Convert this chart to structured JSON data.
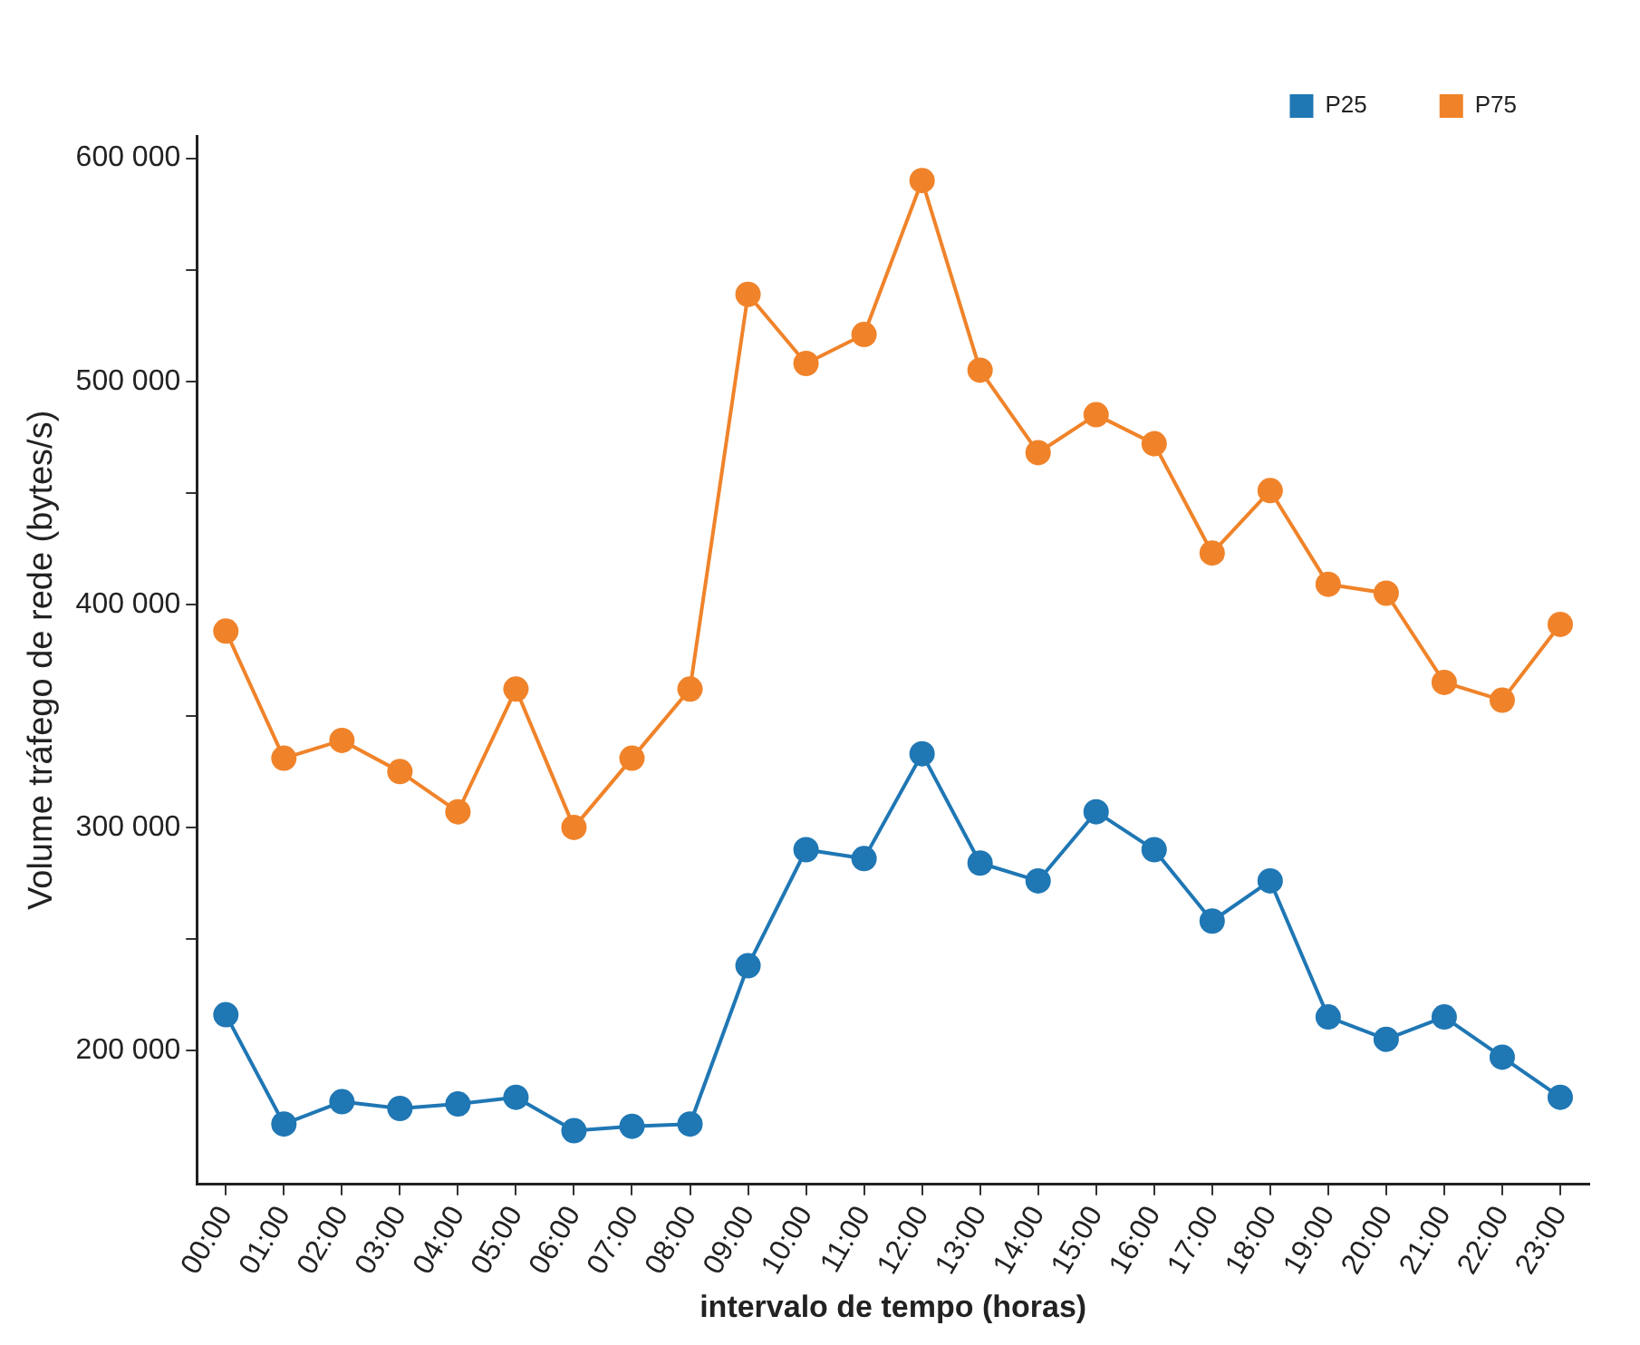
{
  "chart_data": {
    "type": "line",
    "xlabel": "intervalo de tempo (horas)",
    "ylabel": "Volume tráfego de rede (bytes/s)",
    "categories": [
      "00:00",
      "01:00",
      "02:00",
      "03:00",
      "04:00",
      "05:00",
      "06:00",
      "07:00",
      "08:00",
      "09:00",
      "10:00",
      "11:00",
      "12:00",
      "13:00",
      "14:00",
      "15:00",
      "16:00",
      "17:00",
      "18:00",
      "19:00",
      "20:00",
      "21:00",
      "22:00",
      "23:00"
    ],
    "series": [
      {
        "name": "P25",
        "color": "#1f77b4",
        "values": [
          216000,
          167000,
          177000,
          174000,
          176000,
          179000,
          164000,
          166000,
          167000,
          238000,
          290000,
          286000,
          333000,
          284000,
          276000,
          307000,
          290000,
          258000,
          276000,
          215000,
          205000,
          215000,
          197000,
          179000
        ]
      },
      {
        "name": "P75",
        "color": "#f0832a",
        "values": [
          388000,
          331000,
          339000,
          325000,
          307000,
          362000,
          300000,
          331000,
          362000,
          539000,
          508000,
          521000,
          590000,
          505000,
          468000,
          485000,
          472000,
          423000,
          451000,
          409000,
          405000,
          365000,
          357000,
          391000
        ]
      }
    ],
    "ylim": [
      140000,
      610000
    ],
    "yticks": [
      {
        "value": 200000,
        "label": "200 000"
      },
      {
        "value": 250000,
        "label": null
      },
      {
        "value": 300000,
        "label": "300 000"
      },
      {
        "value": 350000,
        "label": null
      },
      {
        "value": 400000,
        "label": "400 000"
      },
      {
        "value": 450000,
        "label": null
      },
      {
        "value": 500000,
        "label": "500 000"
      },
      {
        "value": 550000,
        "label": null
      },
      {
        "value": 600000,
        "label": "600 000"
      }
    ],
    "grid": false,
    "legend": "top right",
    "marker": "circle",
    "line_style": "solid"
  }
}
